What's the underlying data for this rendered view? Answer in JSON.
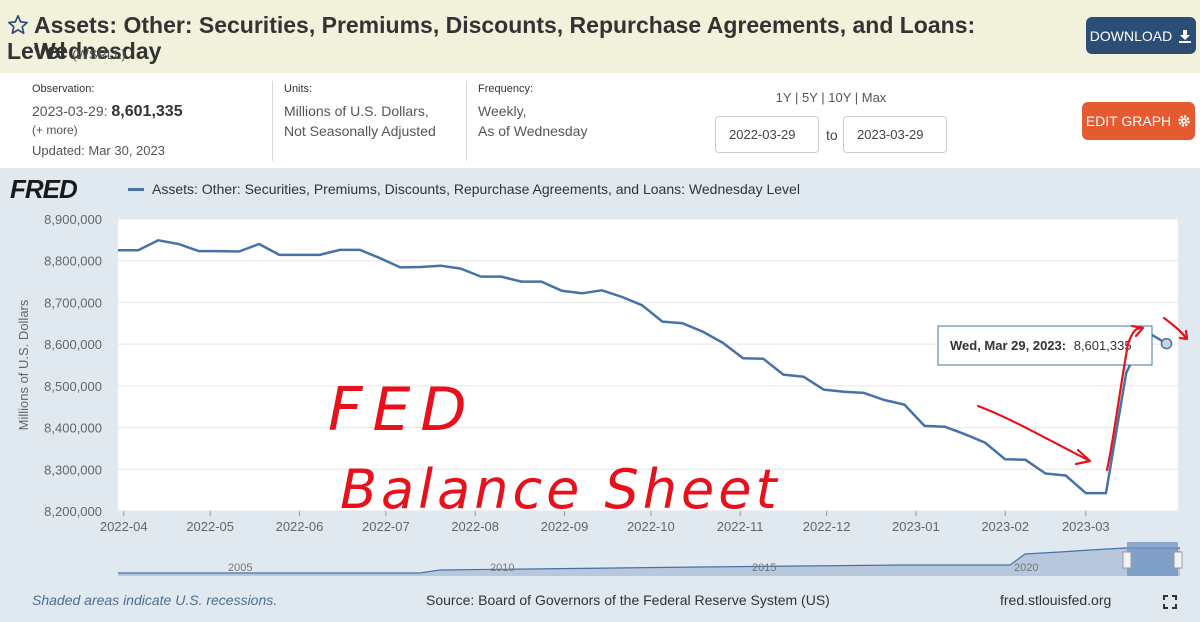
{
  "header": {
    "title_line1": "Assets: Other: Securities, Premiums, Discounts, Repurchase Agreements, and Loans: Wednesday",
    "title_line2": "Level",
    "series_id": "(WSRLL)",
    "download_label": "DOWNLOAD"
  },
  "info": {
    "observation_label": "Observation:",
    "observation_date": "2023-03-29:",
    "observation_value": "8,601,335",
    "more_link": "(+ more)",
    "updated": "Updated: Mar 30, 2023",
    "units_label": "Units:",
    "units_line1": "Millions of U.S. Dollars,",
    "units_line2": "Not Seasonally Adjusted",
    "frequency_label": "Frequency:",
    "frequency_line1": "Weekly,",
    "frequency_line2": "As of Wednesday",
    "ranges": [
      "1Y",
      "5Y",
      "10Y",
      "Max"
    ],
    "start_date": "2022-03-29",
    "end_date": "2023-03-29",
    "to_label": "to",
    "edit_label": "EDIT GRAPH"
  },
  "chart_panel": {
    "logo": "FRED",
    "legend_label": "Assets: Other: Securities, Premiums, Discounts, Repurchase Agreements, and Loans: Wednesday Level",
    "tooltip_date": "Wed, Mar 29, 2023:",
    "tooltip_value": "8,601,335",
    "handwriting_line1": "FED",
    "handwriting_line2": "Balance Sheet",
    "overview_years": [
      "2005",
      "2010",
      "2015",
      "2020"
    ]
  },
  "footer": {
    "recession_note": "Shaded areas indicate U.S. recessions.",
    "source": "Source: Board of Governors of the Federal Reserve System (US)",
    "site": "fred.stlouisfed.org"
  },
  "colors": {
    "line": "#4572a7",
    "header_bg": "#f1f1dc",
    "panel_bg": "#e1e9f0",
    "download_bg": "#2b4d76",
    "edit_bg": "#e55a31",
    "annotation": "#e8101a"
  },
  "chart_data": {
    "type": "line",
    "title": "Assets: Other: Securities, Premiums, Discounts, Repurchase Agreements, and Loans: Wednesday Level",
    "xlabel": "",
    "ylabel": "Millions of U.S. Dollars",
    "ylim": [
      8200000,
      8900000
    ],
    "xlim": [
      "2022-03-30",
      "2023-04-02"
    ],
    "y_ticks": [
      8200000,
      8300000,
      8400000,
      8500000,
      8600000,
      8700000,
      8800000,
      8900000
    ],
    "y_tick_labels": [
      "8,200,000",
      "8,300,000",
      "8,400,000",
      "8,500,000",
      "8,600,000",
      "8,700,000",
      "8,800,000",
      "8,900,000"
    ],
    "x_ticks": [
      "2022-04-01",
      "2022-05-01",
      "2022-06-01",
      "2022-07-01",
      "2022-08-01",
      "2022-09-01",
      "2022-10-01",
      "2022-11-01",
      "2022-12-01",
      "2023-01-01",
      "2023-02-01",
      "2023-03-01"
    ],
    "x_tick_labels": [
      "2022-04",
      "2022-05",
      "2022-06",
      "2022-07",
      "2022-08",
      "2022-09",
      "2022-10",
      "2022-11",
      "2022-12",
      "2023-01",
      "2023-02",
      "2023-03"
    ],
    "grid": "horizontal",
    "legend": "top-left",
    "series": [
      {
        "name": "Assets: Other: Securities, Premiums, Discounts, Repurchase Agreements, and Loans: Wednesday Level",
        "x": [
          "2022-03-30",
          "2022-04-06",
          "2022-04-13",
          "2022-04-20",
          "2022-04-27",
          "2022-05-04",
          "2022-05-11",
          "2022-05-18",
          "2022-05-25",
          "2022-06-01",
          "2022-06-08",
          "2022-06-15",
          "2022-06-22",
          "2022-06-29",
          "2022-07-06",
          "2022-07-13",
          "2022-07-20",
          "2022-07-27",
          "2022-08-03",
          "2022-08-10",
          "2022-08-17",
          "2022-08-24",
          "2022-08-31",
          "2022-09-07",
          "2022-09-14",
          "2022-09-21",
          "2022-09-28",
          "2022-10-05",
          "2022-10-12",
          "2022-10-19",
          "2022-10-26",
          "2022-11-02",
          "2022-11-09",
          "2022-11-16",
          "2022-11-23",
          "2022-11-30",
          "2022-12-07",
          "2022-12-14",
          "2022-12-21",
          "2022-12-28",
          "2023-01-04",
          "2023-01-11",
          "2023-01-18",
          "2023-01-25",
          "2023-02-01",
          "2023-02-08",
          "2023-02-15",
          "2023-02-22",
          "2023-03-01",
          "2023-03-08",
          "2023-03-15",
          "2023-03-22",
          "2023-03-29"
        ],
        "values": [
          8825000,
          8825000,
          8849000,
          8840000,
          8823000,
          8823000,
          8822000,
          8840000,
          8814000,
          8814000,
          8814000,
          8826000,
          8826000,
          8806000,
          8784000,
          8785000,
          8788000,
          8781000,
          8762000,
          8762000,
          8750000,
          8750000,
          8728000,
          8722000,
          8729000,
          8713000,
          8693000,
          8654000,
          8650000,
          8630000,
          8603000,
          8566000,
          8565000,
          8527000,
          8522000,
          8491000,
          8486000,
          8483000,
          8466000,
          8455000,
          8404000,
          8402000,
          8384000,
          8364000,
          8324000,
          8323000,
          8290000,
          8285000,
          8243000,
          8243000,
          8531000,
          8630000,
          8601335
        ]
      }
    ]
  }
}
